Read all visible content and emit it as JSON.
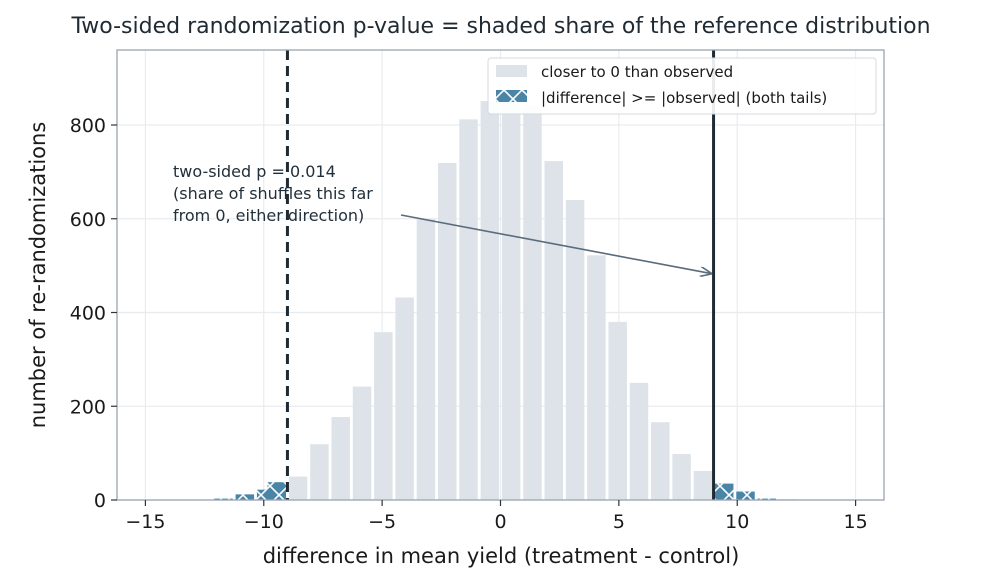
{
  "chart_data": {
    "type": "bar",
    "title": "Two-sided randomization p-value = shaded share of the reference distribution",
    "xlabel": "difference in mean yield  (treatment - control)",
    "ylabel": "number of re-randomizations",
    "xlim": [
      -16.2,
      16.2
    ],
    "ylim": [
      0,
      960
    ],
    "xticks": [
      -15,
      -10,
      -5,
      0,
      5,
      10,
      15
    ],
    "xtick_labels": [
      "−15",
      "−10",
      "−5",
      "0",
      "5",
      "10",
      "15"
    ],
    "yticks": [
      0,
      200,
      400,
      600,
      800
    ],
    "ytick_labels": [
      "0",
      "200",
      "400",
      "600",
      "800"
    ],
    "grid": true,
    "legend_position": "top-right",
    "observed": 9,
    "mirror": -9,
    "bin_width": 0.9,
    "bins": [
      {
        "x": -14.85,
        "value": 0,
        "group": "closer"
      },
      {
        "x": -13.95,
        "value": 0,
        "group": "closer"
      },
      {
        "x": -13.05,
        "value": 0,
        "group": "closer"
      },
      {
        "x": -12.15,
        "value": 1,
        "group": "closer"
      },
      {
        "x": -11.7,
        "value": 3,
        "group": "tail"
      },
      {
        "x": -10.8,
        "value": 12,
        "group": "tail"
      },
      {
        "x": -9.9,
        "value": 22,
        "group": "tail"
      },
      {
        "x": -9.45,
        "value": 38,
        "group": "tail"
      },
      {
        "x": -8.55,
        "value": 50,
        "group": "closer"
      },
      {
        "x": -7.65,
        "value": 119,
        "group": "closer"
      },
      {
        "x": -6.75,
        "value": 177,
        "group": "closer"
      },
      {
        "x": -5.85,
        "value": 242,
        "group": "closer"
      },
      {
        "x": -4.95,
        "value": 358,
        "group": "closer"
      },
      {
        "x": -4.05,
        "value": 432,
        "group": "closer"
      },
      {
        "x": -3.15,
        "value": 599,
        "group": "closer"
      },
      {
        "x": -2.25,
        "value": 719,
        "group": "closer"
      },
      {
        "x": -1.35,
        "value": 812,
        "group": "closer"
      },
      {
        "x": -0.45,
        "value": 851,
        "group": "closer"
      },
      {
        "x": 0.45,
        "value": 858,
        "group": "closer"
      },
      {
        "x": 1.35,
        "value": 842,
        "group": "closer"
      },
      {
        "x": 2.25,
        "value": 723,
        "group": "closer"
      },
      {
        "x": 3.15,
        "value": 640,
        "group": "closer"
      },
      {
        "x": 4.05,
        "value": 522,
        "group": "closer"
      },
      {
        "x": 4.95,
        "value": 380,
        "group": "closer"
      },
      {
        "x": 5.85,
        "value": 250,
        "group": "closer"
      },
      {
        "x": 6.75,
        "value": 166,
        "group": "closer"
      },
      {
        "x": 7.65,
        "value": 98,
        "group": "closer"
      },
      {
        "x": 8.55,
        "value": 62,
        "group": "closer"
      },
      {
        "x": 9.45,
        "value": 35,
        "group": "tail"
      },
      {
        "x": 10.35,
        "value": 18,
        "group": "tail"
      },
      {
        "x": 11.25,
        "value": 3,
        "group": "tail"
      },
      {
        "x": 12.15,
        "value": 2,
        "group": "closer"
      },
      {
        "x": 13.05,
        "value": 1,
        "group": "closer"
      },
      {
        "x": 13.95,
        "value": 0,
        "group": "closer"
      },
      {
        "x": 14.85,
        "value": 0,
        "group": "closer"
      }
    ],
    "legend": [
      {
        "label": "closer to 0 than observed",
        "group": "closer"
      },
      {
        "label": "|difference| >= |observed|  (both tails)",
        "group": "tail"
      }
    ],
    "annotation": {
      "lines": [
        "two-sided p = 0.014",
        "(share of shuffles this far",
        "from 0, either direction)"
      ],
      "arrow_to": {
        "x": 8.9,
        "y": 483
      }
    },
    "colors": {
      "closer": "#dde3e9",
      "tail": "#4a85a8",
      "hatch": "#ffffff",
      "observed_line": "#1f2a33",
      "arrow": "#5a6b7b",
      "grid": "#e9ecef",
      "frame": "#9aa5b1"
    }
  }
}
